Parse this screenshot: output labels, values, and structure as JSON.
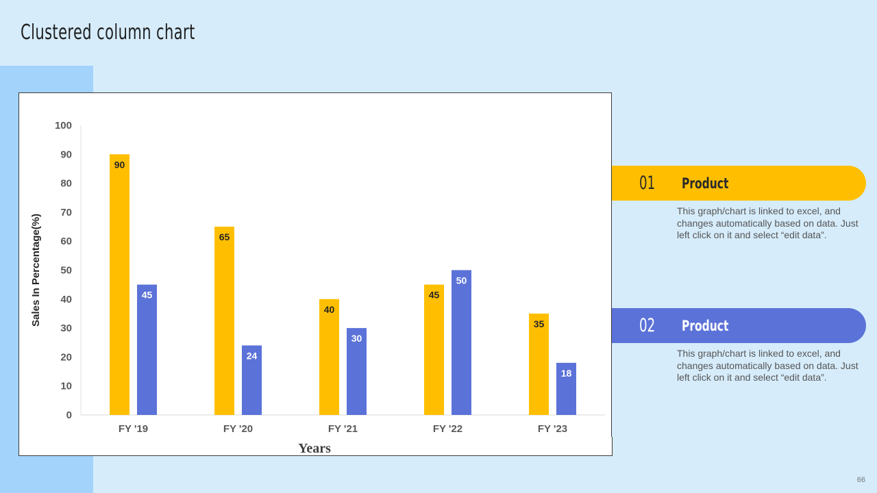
{
  "title": "Clustered column chart",
  "page_number": "66",
  "colors": {
    "series1": "#ffbf00",
    "series2": "#5b72d8",
    "background": "#d6ecfb",
    "accent_strip": "#a3d3fb"
  },
  "chart_data": {
    "type": "bar",
    "categories": [
      "FY '19",
      "FY '20",
      "FY '21",
      "FY '22",
      "FY '23"
    ],
    "series": [
      {
        "values": [
          90,
          65,
          40,
          45,
          35
        ],
        "color": "#ffbf00"
      },
      {
        "values": [
          45,
          24,
          30,
          50,
          18
        ],
        "color": "#5b72d8"
      }
    ],
    "xlabel": "Years",
    "ylabel": "Sales In Percentage(%)",
    "ylim": [
      0,
      100
    ],
    "yticks": [
      0,
      10,
      20,
      30,
      40,
      50,
      60,
      70,
      80,
      90,
      100
    ],
    "data_labels": true,
    "grid": false,
    "legend": "none"
  },
  "legend_cards": [
    {
      "number": "01",
      "label": "Product",
      "color": "#ffbf00",
      "description": "This graph/chart is linked to excel, and changes automatically based on data. Just left click on it and select “edit data”."
    },
    {
      "number": "02",
      "label": "Product",
      "color": "#5b72d8",
      "description": "This graph/chart is linked to excel, and changes automatically based on data. Just left click on it and select “edit data”."
    }
  ]
}
